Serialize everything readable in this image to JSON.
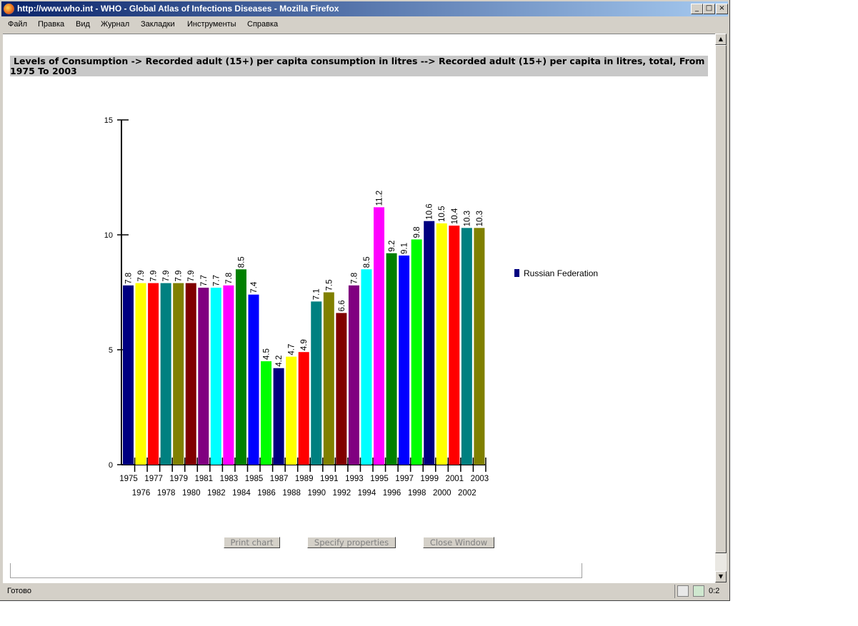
{
  "window": {
    "title": "http://www.who.int - WHO - Global Atlas of Infections Diseases - Mozilla Firefox",
    "minimize": "_",
    "maximize": "□",
    "close": "×"
  },
  "menu": [
    "Файл",
    "Правка",
    "Вид",
    "Журнал",
    "Закладки",
    "Инструменты",
    "Справка"
  ],
  "page": {
    "heading": "Levels of Consumption -> Recorded adult (15+) per capita consumption in litres --> Recorded adult (15+) per capita in litres, total, From 1975 To 2003",
    "buttons": {
      "print": "Print chart",
      "properties": "Specify properties",
      "close": "Close Window"
    }
  },
  "status": {
    "text": "Готово",
    "time": "0:2"
  },
  "chart_data": {
    "type": "bar",
    "categories": [
      "1975",
      "1976",
      "1977",
      "1978",
      "1979",
      "1980",
      "1981",
      "1982",
      "1983",
      "1984",
      "1985",
      "1986",
      "1987",
      "1988",
      "1989",
      "1990",
      "1991",
      "1992",
      "1993",
      "1994",
      "1995",
      "1996",
      "1997",
      "1998",
      "1999",
      "2000",
      "2001",
      "2002",
      "2003"
    ],
    "series": [
      {
        "name": "Russian Federation",
        "values": [
          7.8,
          7.9,
          7.9,
          7.9,
          7.9,
          7.9,
          7.7,
          7.7,
          7.8,
          8.5,
          7.4,
          4.5,
          4.2,
          4.7,
          4.9,
          7.1,
          7.5,
          6.6,
          7.8,
          8.5,
          11.2,
          9.2,
          9.1,
          9.8,
          10.6,
          10.5,
          10.4,
          10.3,
          10.3
        ]
      }
    ],
    "bar_colors": [
      "#000080",
      "#ffff00",
      "#ff0000",
      "#008080",
      "#808000",
      "#800000",
      "#800080",
      "#00ffff",
      "#ff00ff",
      "#008000",
      "#0000ff",
      "#00ff00"
    ],
    "legend_color": "#000080",
    "data_labels": [
      "7.8",
      "7.9",
      "7.9",
      "7.9",
      "7.9",
      "7.9",
      "7.7",
      "7.7",
      "7.8",
      "8.5",
      "7.4",
      "4.5",
      "4.2",
      "4.7",
      "4.9",
      "7.1",
      "7.5",
      "6.6",
      "7.8",
      "8.5",
      "11.2",
      "9.2",
      "9.1",
      "9.8",
      "10.6",
      "10.5",
      "10.4",
      "10.3",
      "10.3"
    ],
    "yticks": [
      "0",
      "5",
      "10",
      "15"
    ],
    "ylim": [
      0,
      15
    ],
    "legend_position": "right",
    "grid": false
  }
}
